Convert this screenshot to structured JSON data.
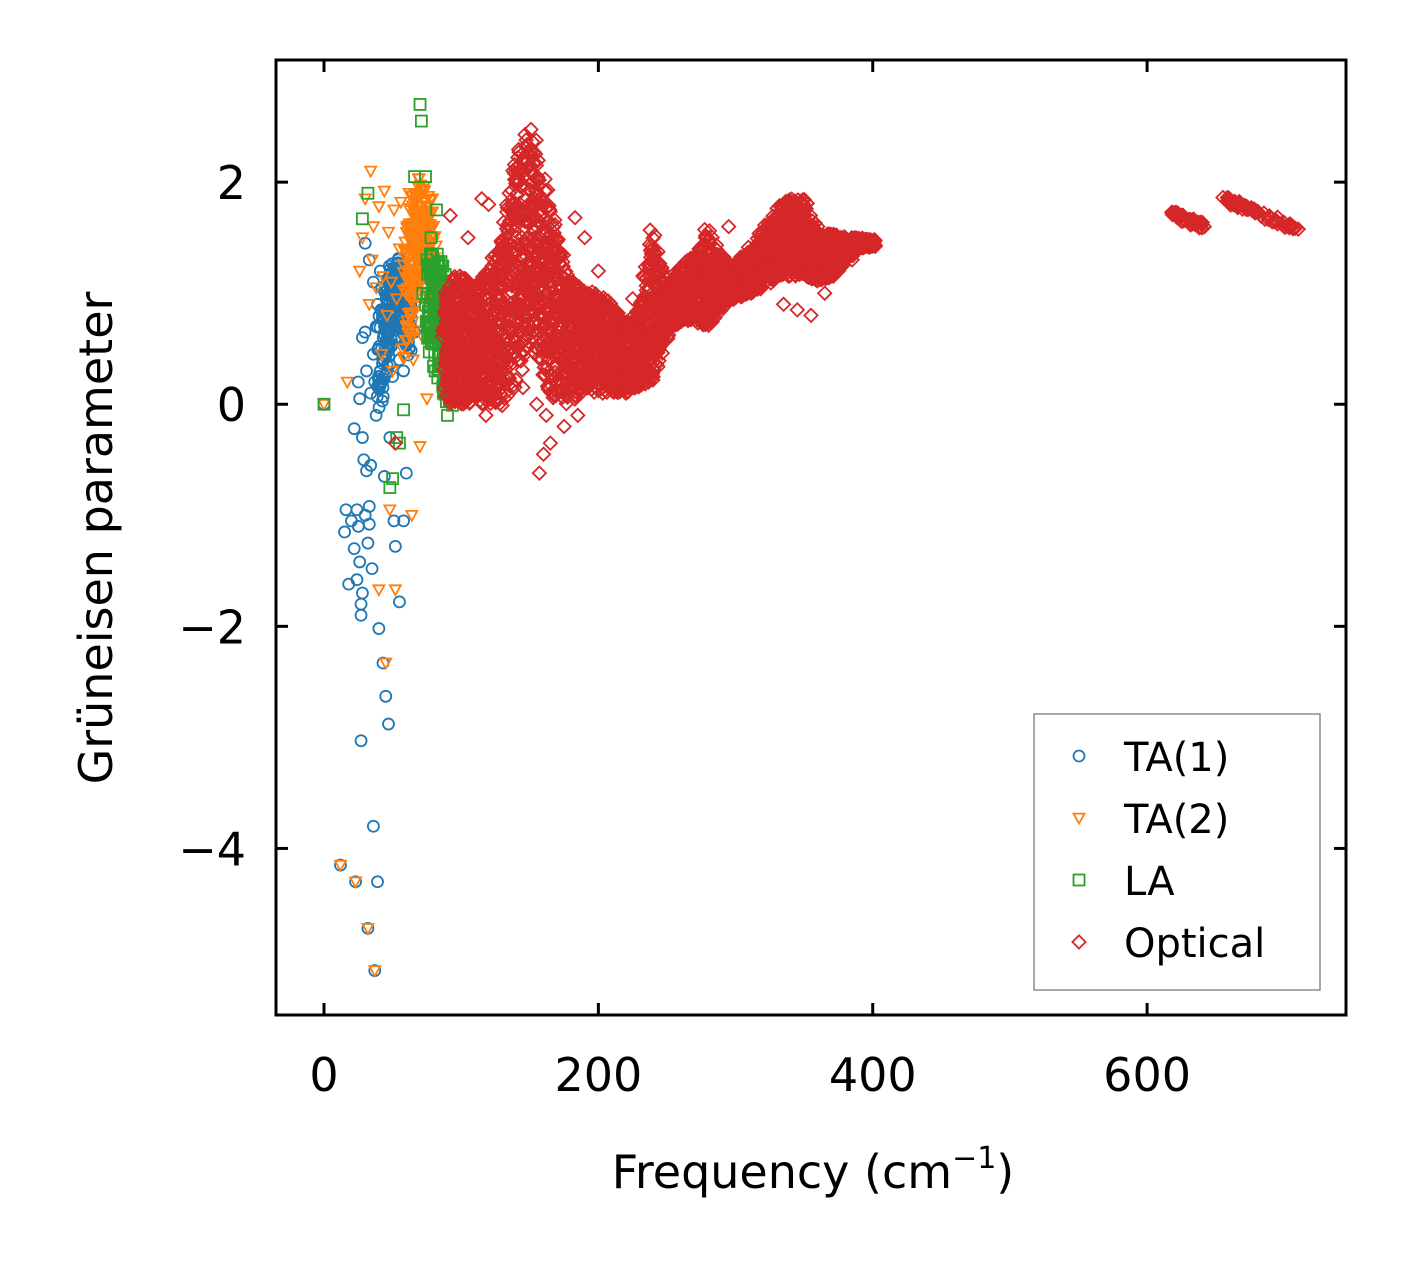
{
  "chart_data": {
    "type": "scatter",
    "title": "",
    "xlabel": "Frequency (cm",
    "xlabel_sup": "−1",
    "xlabel_end": ")",
    "ylabel": "Grüneisen parameter",
    "xlim": [
      -35,
      745
    ],
    "ylim": [
      -5.5,
      3.1
    ],
    "xticks": [
      0,
      200,
      400,
      600
    ],
    "xtick_labels": [
      "0",
      "200",
      "400",
      "600"
    ],
    "yticks": [
      -4,
      -2,
      0,
      2
    ],
    "ytick_labels": [
      "−4",
      "−2",
      "0",
      "2"
    ],
    "legend_position": "lower-right",
    "series": [
      {
        "name": "TA(1)",
        "marker": "circle",
        "color": "#1f77b4",
        "points": [
          [
            0,
            0
          ],
          [
            12,
            -4.15
          ],
          [
            15,
            -1.15
          ],
          [
            16,
            -0.95
          ],
          [
            18,
            -1.62
          ],
          [
            20,
            -1.05
          ],
          [
            22,
            -1.3
          ],
          [
            22,
            -0.22
          ],
          [
            23,
            -4.3
          ],
          [
            24,
            -0.95
          ],
          [
            24,
            -1.58
          ],
          [
            25,
            -1.1
          ],
          [
            25,
            0.2
          ],
          [
            26,
            0.05
          ],
          [
            26,
            -1.42
          ],
          [
            27,
            -1.8
          ],
          [
            27,
            -3.03
          ],
          [
            27,
            -1.9
          ],
          [
            28,
            -1.7
          ],
          [
            28,
            0.6
          ],
          [
            28,
            -0.3
          ],
          [
            29,
            -0.5
          ],
          [
            30,
            1.45
          ],
          [
            30,
            -1.0
          ],
          [
            30,
            0.65
          ],
          [
            31,
            0.3
          ],
          [
            31,
            -0.6
          ],
          [
            32,
            -4.72
          ],
          [
            32,
            -1.25
          ],
          [
            33,
            1.3
          ],
          [
            33,
            -0.92
          ],
          [
            33,
            -1.08
          ],
          [
            34,
            0.1
          ],
          [
            34,
            -0.55
          ],
          [
            35,
            -1.48
          ],
          [
            36,
            -3.8
          ],
          [
            36,
            1.1
          ],
          [
            36,
            0.45
          ],
          [
            37,
            -5.1
          ],
          [
            37,
            0.2
          ],
          [
            38,
            0.7
          ],
          [
            38,
            -0.1
          ],
          [
            39,
            -4.3
          ],
          [
            39,
            0.9
          ],
          [
            40,
            -2.02
          ],
          [
            40,
            0.5
          ],
          [
            41,
            1.2
          ],
          [
            41,
            0.3
          ],
          [
            42,
            1.05
          ],
          [
            43,
            -2.33
          ],
          [
            43,
            0.15
          ],
          [
            44,
            0.85
          ],
          [
            44,
            -0.65
          ],
          [
            45,
            -2.63
          ],
          [
            45,
            0.7
          ],
          [
            46,
            0.35
          ],
          [
            47,
            -2.88
          ],
          [
            47,
            1.0
          ],
          [
            48,
            0.55
          ],
          [
            48,
            -0.3
          ],
          [
            49,
            1.15
          ],
          [
            50,
            0.8
          ],
          [
            50,
            0.25
          ],
          [
            51,
            -1.05
          ],
          [
            52,
            -1.28
          ],
          [
            52,
            0.95
          ],
          [
            53,
            0.6
          ],
          [
            54,
            1.3
          ],
          [
            55,
            -1.78
          ],
          [
            55,
            0.4
          ],
          [
            56,
            1.0
          ],
          [
            57,
            0.75
          ],
          [
            58,
            -1.05
          ],
          [
            58,
            0.3
          ],
          [
            60,
            0.85
          ],
          [
            60,
            -0.62
          ],
          [
            62,
            0.5
          ],
          [
            63,
            1.2
          ],
          [
            65,
            1.5
          ],
          [
            66,
            0.65
          ]
        ]
      },
      {
        "name": "TA(2)",
        "marker": "triangle",
        "color": "#ff7f0e",
        "points": [
          [
            0,
            0
          ],
          [
            12,
            -4.15
          ],
          [
            17,
            0.2
          ],
          [
            23,
            -4.3
          ],
          [
            26,
            1.2
          ],
          [
            28,
            1.5
          ],
          [
            30,
            1.85
          ],
          [
            32,
            -4.72
          ],
          [
            33,
            0.9
          ],
          [
            34,
            2.1
          ],
          [
            35,
            1.3
          ],
          [
            36,
            1.6
          ],
          [
            37,
            -5.1
          ],
          [
            38,
            1.05
          ],
          [
            40,
            1.78
          ],
          [
            40,
            -1.67
          ],
          [
            42,
            0.45
          ],
          [
            43,
            1.15
          ],
          [
            44,
            1.92
          ],
          [
            45,
            -2.33
          ],
          [
            46,
            0.8
          ],
          [
            47,
            1.55
          ],
          [
            48,
            -0.95
          ],
          [
            49,
            1.1
          ],
          [
            50,
            0.3
          ],
          [
            51,
            1.75
          ],
          [
            52,
            -1.67
          ],
          [
            53,
            0.95
          ],
          [
            55,
            1.4
          ],
          [
            56,
            1.82
          ],
          [
            57,
            0.5
          ],
          [
            58,
            1.25
          ],
          [
            60,
            0.7
          ],
          [
            62,
            1.9
          ],
          [
            63,
            1.05
          ],
          [
            64,
            -1.0
          ],
          [
            65,
            0.4
          ],
          [
            66,
            1.6
          ],
          [
            68,
            0.9
          ],
          [
            69,
            1.95
          ],
          [
            70,
            -0.38
          ],
          [
            71,
            1.3
          ],
          [
            72,
            0.6
          ],
          [
            74,
            1.7
          ],
          [
            75,
            0.05
          ],
          [
            77,
            1.2
          ],
          [
            79,
            1.85
          ]
        ]
      },
      {
        "name": "LA",
        "marker": "square",
        "color": "#2ca02c",
        "points": [
          [
            0,
            0
          ],
          [
            28,
            1.67
          ],
          [
            32,
            1.9
          ],
          [
            48,
            -0.75
          ],
          [
            50,
            -0.67
          ],
          [
            53,
            -0.3
          ],
          [
            55,
            -0.35
          ],
          [
            58,
            -0.05
          ],
          [
            66,
            2.05
          ],
          [
            70,
            2.7
          ],
          [
            71,
            2.55
          ],
          [
            72,
            1.0
          ],
          [
            74,
            2.05
          ],
          [
            75,
            1.3
          ],
          [
            77,
            0.8
          ],
          [
            78,
            1.5
          ],
          [
            79,
            0.6
          ],
          [
            80,
            1.1
          ],
          [
            81,
            0.3
          ],
          [
            82,
            1.75
          ],
          [
            83,
            0.9
          ],
          [
            84,
            0.45
          ],
          [
            85,
            1.2
          ],
          [
            86,
            0.7
          ],
          [
            87,
            0.1
          ],
          [
            88,
            1.05
          ],
          [
            89,
            0.55
          ],
          [
            90,
            -0.1
          ],
          [
            91,
            0.9
          ],
          [
            92,
            0.3
          ],
          [
            93,
            1.0
          ],
          [
            94,
            0.45
          ]
        ]
      },
      {
        "name": "Optical",
        "marker": "diamond",
        "color": "#d62728",
        "points": [
          [
            52,
            -0.35
          ],
          [
            92,
            1.7
          ],
          [
            100,
            0.4
          ],
          [
            105,
            1.5
          ],
          [
            110,
            0.1
          ],
          [
            115,
            1.85
          ],
          [
            118,
            -0.1
          ],
          [
            120,
            1.8
          ],
          [
            125,
            1.2
          ],
          [
            130,
            0.8
          ],
          [
            135,
            1.9
          ],
          [
            138,
            0.6
          ],
          [
            140,
            1.1
          ],
          [
            145,
            0.15
          ],
          [
            150,
            0.9
          ],
          [
            155,
            0.0
          ],
          [
            157,
            -0.62
          ],
          [
            160,
            -0.45
          ],
          [
            162,
            -0.1
          ],
          [
            165,
            -0.35
          ],
          [
            168,
            0.35
          ],
          [
            170,
            1.3
          ],
          [
            175,
            -0.2
          ],
          [
            180,
            0.8
          ],
          [
            183,
            1.68
          ],
          [
            185,
            -0.1
          ],
          [
            190,
            1.5
          ],
          [
            195,
            0.6
          ],
          [
            200,
            1.2
          ],
          [
            205,
            0.2
          ],
          [
            210,
            0.8
          ],
          [
            215,
            0.45
          ],
          [
            220,
            0.1
          ],
          [
            225,
            0.95
          ],
          [
            230,
            0.5
          ],
          [
            235,
            0.3
          ],
          [
            240,
            1.4
          ],
          [
            248,
            0.7
          ],
          [
            255,
            0.9
          ],
          [
            260,
            1.0
          ],
          [
            265,
            0.85
          ],
          [
            270,
            1.2
          ],
          [
            278,
            1.5
          ],
          [
            285,
            0.9
          ],
          [
            295,
            1.6
          ],
          [
            300,
            1.1
          ],
          [
            310,
            1.3
          ],
          [
            320,
            1.55
          ],
          [
            330,
            1.2
          ],
          [
            335,
            0.9
          ],
          [
            340,
            1.5
          ],
          [
            345,
            0.85
          ],
          [
            350,
            1.3
          ],
          [
            355,
            0.8
          ],
          [
            360,
            1.6
          ],
          [
            365,
            1.0
          ],
          [
            370,
            1.4
          ],
          [
            375,
            1.2
          ],
          [
            380,
            1.5
          ],
          [
            385,
            1.3
          ],
          [
            390,
            1.45
          ],
          [
            398,
            1.45
          ]
        ]
      }
    ],
    "dense_regions": [
      {
        "series": "TA(1)",
        "color": "#1f77b4",
        "marker": "circle",
        "centerline": [
          [
            40,
            0.3
          ],
          [
            45,
            0.7
          ],
          [
            50,
            0.95
          ],
          [
            55,
            1.05
          ],
          [
            60,
            0.9
          ],
          [
            62,
            0.7
          ]
        ],
        "halfwidth": [
          0.35,
          0.4,
          0.35,
          0.3,
          0.3,
          0.3
        ],
        "count": 260
      },
      {
        "series": "TA(2)",
        "color": "#ff7f0e",
        "marker": "triangle",
        "centerline": [
          [
            60,
            1.0
          ],
          [
            65,
            1.3
          ],
          [
            70,
            1.6
          ],
          [
            75,
            1.5
          ],
          [
            80,
            1.2
          ]
        ],
        "halfwidth": [
          0.6,
          0.6,
          0.45,
          0.4,
          0.4
        ],
        "count": 260
      },
      {
        "series": "LA",
        "color": "#2ca02c",
        "marker": "square",
        "centerline": [
          [
            76,
            1.0
          ],
          [
            80,
            0.9
          ],
          [
            85,
            0.75
          ],
          [
            90,
            0.55
          ],
          [
            93,
            0.4
          ]
        ],
        "halfwidth": [
          0.35,
          0.5,
          0.55,
          0.5,
          0.45
        ],
        "count": 220
      },
      {
        "series": "Optical",
        "color": "#d62728",
        "marker": "diamond",
        "centerline": [
          [
            88,
            0.5
          ],
          [
            100,
            0.6
          ],
          [
            110,
            0.55
          ],
          [
            120,
            0.6
          ],
          [
            130,
            0.75
          ],
          [
            140,
            1.2
          ],
          [
            150,
            1.55
          ],
          [
            160,
            1.1
          ],
          [
            170,
            0.75
          ],
          [
            180,
            0.55
          ],
          [
            190,
            0.6
          ],
          [
            200,
            0.55
          ],
          [
            210,
            0.5
          ],
          [
            220,
            0.4
          ],
          [
            230,
            0.5
          ],
          [
            240,
            0.9
          ],
          [
            250,
            0.85
          ],
          [
            260,
            1.0
          ],
          [
            270,
            1.05
          ],
          [
            280,
            1.15
          ],
          [
            290,
            1.1
          ],
          [
            300,
            1.1
          ],
          [
            310,
            1.2
          ],
          [
            320,
            1.3
          ],
          [
            330,
            1.45
          ],
          [
            340,
            1.5
          ],
          [
            350,
            1.5
          ],
          [
            360,
            1.3
          ],
          [
            370,
            1.35
          ],
          [
            380,
            1.4
          ],
          [
            390,
            1.45
          ],
          [
            400,
            1.45
          ]
        ],
        "halfwidth": [
          0.5,
          0.6,
          0.55,
          0.6,
          0.8,
          1.0,
          1.0,
          0.9,
          0.75,
          0.55,
          0.45,
          0.45,
          0.4,
          0.3,
          0.35,
          0.7,
          0.2,
          0.25,
          0.3,
          0.45,
          0.2,
          0.15,
          0.2,
          0.25,
          0.3,
          0.35,
          0.35,
          0.2,
          0.2,
          0.1,
          0.05,
          0.03
        ],
        "count": 4200
      },
      {
        "series": "Optical",
        "color": "#d62728",
        "marker": "diamond",
        "centerline": [
          [
            618,
            1.72
          ],
          [
            630,
            1.66
          ],
          [
            642,
            1.6
          ]
        ],
        "halfwidth": [
          0.03,
          0.03,
          0.03
        ],
        "count": 40
      },
      {
        "series": "Optical",
        "color": "#d62728",
        "marker": "diamond",
        "centerline": [
          [
            655,
            1.86
          ],
          [
            670,
            1.78
          ],
          [
            690,
            1.68
          ],
          [
            710,
            1.57
          ]
        ],
        "halfwidth": [
          0.03,
          0.03,
          0.03,
          0.03
        ],
        "count": 70
      }
    ]
  }
}
